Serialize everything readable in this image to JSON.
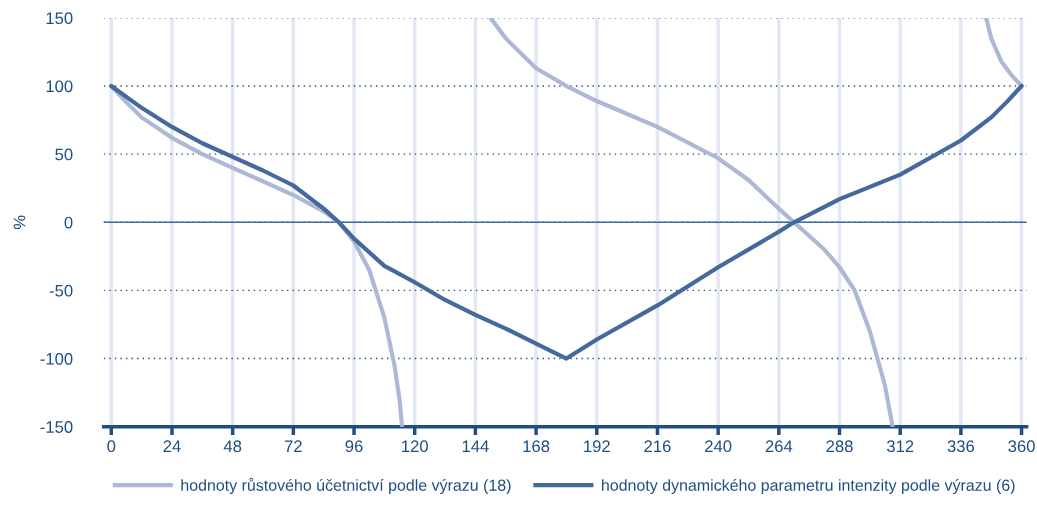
{
  "chart_data": {
    "type": "line",
    "ylabel": "%",
    "xlim": [
      -3,
      362
    ],
    "xticks": [
      0,
      24,
      48,
      72,
      96,
      120,
      144,
      168,
      192,
      216,
      240,
      264,
      288,
      312,
      336,
      360
    ],
    "ylim": [
      -150,
      150
    ],
    "yticks": [
      -150,
      -100,
      -50,
      0,
      50,
      100,
      150
    ],
    "grid": true,
    "legend": "bottom",
    "line_style": "solid",
    "marker": "none",
    "ref_lines": [
      {
        "axis": "y",
        "value": 0,
        "color": "#3a6ea5"
      }
    ],
    "series": [
      {
        "name": "hodnoty růstového účetnictví podle výrazu (18)",
        "color": "#adb8d6",
        "x": [
          0,
          6,
          12,
          24,
          36,
          48,
          60,
          72,
          84,
          90,
          96,
          102,
          108,
          112,
          114,
          115,
          null,
          150,
          156,
          168,
          180,
          192,
          216,
          240,
          252,
          264,
          270,
          282,
          288,
          294,
          300,
          306,
          309,
          null,
          346,
          348,
          352,
          356,
          360
        ],
        "values": [
          100,
          88,
          77,
          62,
          50,
          40,
          30,
          20,
          8,
          0,
          -14,
          -35,
          -70,
          -105,
          -130,
          -150,
          null,
          150,
          135,
          113,
          100,
          89,
          70,
          47,
          31,
          10,
          0,
          -20,
          -33,
          -50,
          -80,
          -120,
          -150,
          null,
          150,
          135,
          118,
          108,
          100
        ]
      },
      {
        "name": "hodnoty dynamického parametru intenzity podle výrazu (6)",
        "color": "#45699c",
        "x": [
          0,
          12,
          24,
          36,
          48,
          60,
          72,
          84,
          90,
          96,
          108,
          120,
          132,
          144,
          156,
          168,
          180,
          192,
          216,
          240,
          264,
          270,
          288,
          312,
          336,
          348,
          354,
          360
        ],
        "values": [
          100,
          84,
          70,
          58,
          48,
          38,
          27,
          10,
          0,
          -12,
          -32,
          -44,
          -57,
          -68,
          -78,
          -89,
          -100,
          -86,
          -61,
          -33,
          -7,
          0,
          17,
          35,
          60,
          77,
          88,
          100
        ]
      }
    ]
  }
}
